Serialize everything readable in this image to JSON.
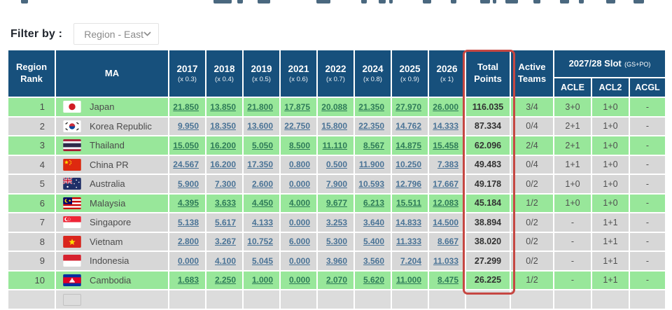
{
  "filter": {
    "label": "Filter by :",
    "value": "Region - East"
  },
  "table": {
    "headers": {
      "region_rank": "Region Rank",
      "ma": "MA",
      "years": [
        {
          "year": "2017",
          "mult": "(x 0.3)"
        },
        {
          "year": "2018",
          "mult": "(x 0.4)"
        },
        {
          "year": "2019",
          "mult": "(x 0.5)"
        },
        {
          "year": "2021",
          "mult": "(x 0.6)"
        },
        {
          "year": "2022",
          "mult": "(x 0.7)"
        },
        {
          "year": "2024",
          "mult": "(x 0.8)"
        },
        {
          "year": "2025",
          "mult": "(x 0.9)"
        },
        {
          "year": "2026",
          "mult": "(x 1)"
        }
      ],
      "total": "Total Points",
      "active": "Active Teams",
      "slot": "2027/28 Slot",
      "slot_sub": "(GS+PO)",
      "slot_cols": [
        "ACLE",
        "ACL2",
        "ACGL"
      ]
    },
    "rows": [
      {
        "rank": "1",
        "country": "Japan",
        "flag": "jp",
        "highlight": true,
        "points": [
          "21.850",
          "13.850",
          "21.800",
          "17.875",
          "20.088",
          "21.350",
          "27.970",
          "26.000"
        ],
        "total": "116.035",
        "active": "3/4",
        "acle": "3+0",
        "acl2": "1+0",
        "acgl": "-"
      },
      {
        "rank": "2",
        "country": "Korea Republic",
        "flag": "kr",
        "highlight": false,
        "points": [
          "9.950",
          "18.350",
          "13.600",
          "22.750",
          "15.800",
          "22.350",
          "14.762",
          "14.333"
        ],
        "total": "87.334",
        "active": "0/4",
        "acle": "2+1",
        "acl2": "1+0",
        "acgl": "-"
      },
      {
        "rank": "3",
        "country": "Thailand",
        "flag": "th",
        "highlight": true,
        "points": [
          "15.050",
          "16.200",
          "5.050",
          "8.500",
          "11.110",
          "8.567",
          "14.875",
          "15.458"
        ],
        "total": "62.096",
        "active": "2/4",
        "acle": "2+1",
        "acl2": "1+0",
        "acgl": "-"
      },
      {
        "rank": "4",
        "country": "China PR",
        "flag": "cn",
        "highlight": false,
        "points": [
          "24.567",
          "16.200",
          "17.350",
          "0.800",
          "0.500",
          "11.900",
          "10.250",
          "7.383"
        ],
        "total": "49.483",
        "active": "0/4",
        "acle": "1+1",
        "acl2": "1+0",
        "acgl": "-"
      },
      {
        "rank": "5",
        "country": "Australia",
        "flag": "au",
        "highlight": false,
        "points": [
          "5.900",
          "7.300",
          "2.600",
          "0.000",
          "7.900",
          "10.593",
          "12.796",
          "17.667"
        ],
        "total": "49.178",
        "active": "0/2",
        "acle": "1+0",
        "acl2": "1+0",
        "acgl": "-"
      },
      {
        "rank": "6",
        "country": "Malaysia",
        "flag": "my",
        "highlight": true,
        "points": [
          "4.395",
          "3.633",
          "4.450",
          "4.000",
          "9.677",
          "6.213",
          "15.511",
          "12.083"
        ],
        "total": "45.184",
        "active": "1/2",
        "acle": "1+0",
        "acl2": "1+0",
        "acgl": "-"
      },
      {
        "rank": "7",
        "country": "Singapore",
        "flag": "sg",
        "highlight": false,
        "points": [
          "5.138",
          "5.617",
          "4.133",
          "0.000",
          "3.253",
          "3.640",
          "14.833",
          "14.500"
        ],
        "total": "38.894",
        "active": "0/2",
        "acle": "-",
        "acl2": "1+1",
        "acgl": "-"
      },
      {
        "rank": "8",
        "country": "Vietnam",
        "flag": "vn",
        "highlight": false,
        "points": [
          "2.800",
          "3.267",
          "10.752",
          "6.000",
          "5.300",
          "5.400",
          "11.333",
          "8.667"
        ],
        "total": "38.020",
        "active": "0/2",
        "acle": "-",
        "acl2": "1+1",
        "acgl": "-"
      },
      {
        "rank": "9",
        "country": "Indonesia",
        "flag": "id",
        "highlight": false,
        "points": [
          "0.000",
          "4.100",
          "5.045",
          "0.000",
          "3.960",
          "3.560",
          "7.204",
          "11.033"
        ],
        "total": "27.299",
        "active": "0/2",
        "acle": "-",
        "acl2": "1+1",
        "acgl": "-"
      },
      {
        "rank": "10",
        "country": "Cambodia",
        "flag": "kh",
        "highlight": true,
        "points": [
          "1.683",
          "2.250",
          "1.000",
          "0.000",
          "2.070",
          "5.620",
          "11.000",
          "8.475"
        ],
        "total": "26.225",
        "active": "1/2",
        "acle": "-",
        "acl2": "1+1",
        "acgl": "-"
      }
    ]
  },
  "colors": {
    "header_bg": "#17507c",
    "row_green": "#98e79a",
    "row_gray": "#d7d7d7",
    "highlight_red": "#c64742",
    "link_blue": "#4a7396",
    "link_green": "#2e7b58"
  }
}
